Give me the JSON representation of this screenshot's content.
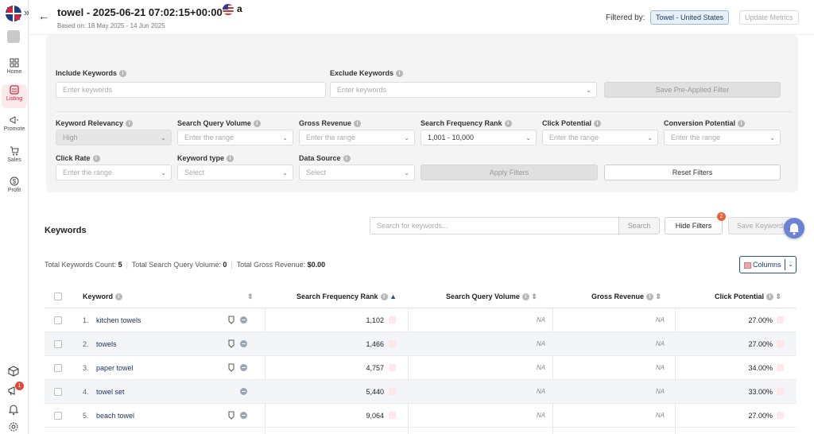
{
  "header": {
    "title": "towel - 2025-06-21 07:02:15+00:00",
    "subtitle": "Based on: 18 May 2025 - 14 Jun 2025",
    "filtered_by_label": "Filtered by:",
    "filter_chip": "Towel - United States",
    "update_button": "Update Metrics"
  },
  "sidebar": {
    "items": [
      {
        "label": "Home",
        "icon": "grid-icon"
      },
      {
        "label": "Listing",
        "icon": "listing-icon"
      },
      {
        "label": "Promote",
        "icon": "megaphone-icon"
      },
      {
        "label": "Sales",
        "icon": "cart-icon"
      },
      {
        "label": "Profit",
        "icon": "dollar-icon"
      }
    ],
    "notification_count": "1"
  },
  "filters": {
    "include_label": "Include Keywords",
    "include_placeholder": "Enter keywords",
    "exclude_label": "Exclude Keywords",
    "exclude_placeholder": "Enter keywords",
    "save_preapplied": "Save Pre-Applied Filter",
    "fields": [
      {
        "label": "Keyword Relevancy",
        "value": "High"
      },
      {
        "label": "Search Query Volume",
        "value": "Enter the range"
      },
      {
        "label": "Gross Revenue",
        "value": "Enter the range"
      },
      {
        "label": "Search Frequency Rank",
        "value": "1,001 - 10,000"
      },
      {
        "label": "Click Potential",
        "value": "Enter the range"
      },
      {
        "label": "Conversion Potential",
        "value": "Enter the range"
      },
      {
        "label": "Click Rate",
        "value": "Enter the range"
      },
      {
        "label": "Keyword type",
        "value": "Select"
      },
      {
        "label": "Data Source",
        "value": "Select"
      }
    ],
    "apply_button": "Apply Filters",
    "reset_button": "Reset Filters"
  },
  "keywords": {
    "title": "Keywords",
    "search_placeholder": "Search for keywords...",
    "search_button": "Search",
    "hide_filters_button": "Hide Filters",
    "hide_filters_badge": "2",
    "save_keywords_button": "Save Keywords",
    "totals": {
      "count_label": "Total Keywords Count:",
      "count_value": "5",
      "sqv_label": "Total Search Query Volume:",
      "sqv_value": "0",
      "revenue_label": "Total Gross Revenue:",
      "revenue_value": "$0.00"
    },
    "columns_button": "Columns",
    "headers": {
      "keyword": "Keyword",
      "sfr": "Search Frequency Rank",
      "sqv": "Search Query Volume",
      "revenue": "Gross Revenue",
      "click_potential": "Click Potential"
    },
    "rows": [
      {
        "num": "1.",
        "keyword": "kitchen towels",
        "sfr": "1,102",
        "sqv": "NA",
        "revenue": "NA",
        "click": "27.00%"
      },
      {
        "num": "2.",
        "keyword": "towels",
        "sfr": "1,466",
        "sqv": "NA",
        "revenue": "NA",
        "click": "27.00%"
      },
      {
        "num": "3.",
        "keyword": "paper towel",
        "sfr": "4,757",
        "sqv": "NA",
        "revenue": "NA",
        "click": "34.00%"
      },
      {
        "num": "4.",
        "keyword": "towel set",
        "sfr": "5,440",
        "sqv": "NA",
        "revenue": "NA",
        "click": "33.00%"
      },
      {
        "num": "5.",
        "keyword": "beach towel",
        "sfr": "9,064",
        "sqv": "NA",
        "revenue": "NA",
        "click": "27.00%"
      }
    ]
  }
}
